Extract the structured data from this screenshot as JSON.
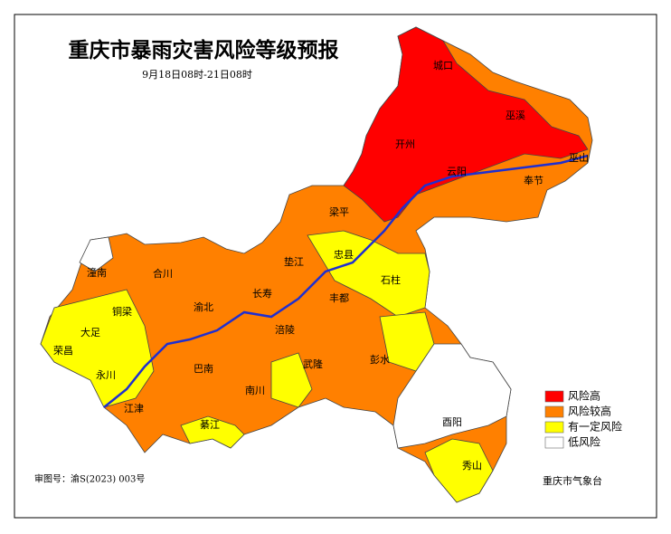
{
  "title": "重庆市暴雨灾害风险等级预报",
  "subtitle": "9月18日08时-21日08时",
  "legend": [
    {
      "label": "风险高",
      "color": "#ff0000"
    },
    {
      "label": "风险较高",
      "color": "#ff8000"
    },
    {
      "label": "有一定风险",
      "color": "#ffff00"
    },
    {
      "label": "低风险",
      "color": "#ffffff"
    }
  ],
  "places": [
    "城口",
    "巫溪",
    "巫山",
    "奉节",
    "开州",
    "云阳",
    "梁平",
    "忠县",
    "垫江",
    "石柱",
    "丰都",
    "长寿",
    "涪陵",
    "潼南",
    "合川",
    "铜梁",
    "大足",
    "荣昌",
    "永川",
    "渝北",
    "巴南",
    "江津",
    "綦江",
    "南川",
    "武隆",
    "彭水",
    "酉阳",
    "秀山"
  ],
  "map_number": "审图号：渝S(2023) 003号",
  "issuer": "重庆市气象台"
}
